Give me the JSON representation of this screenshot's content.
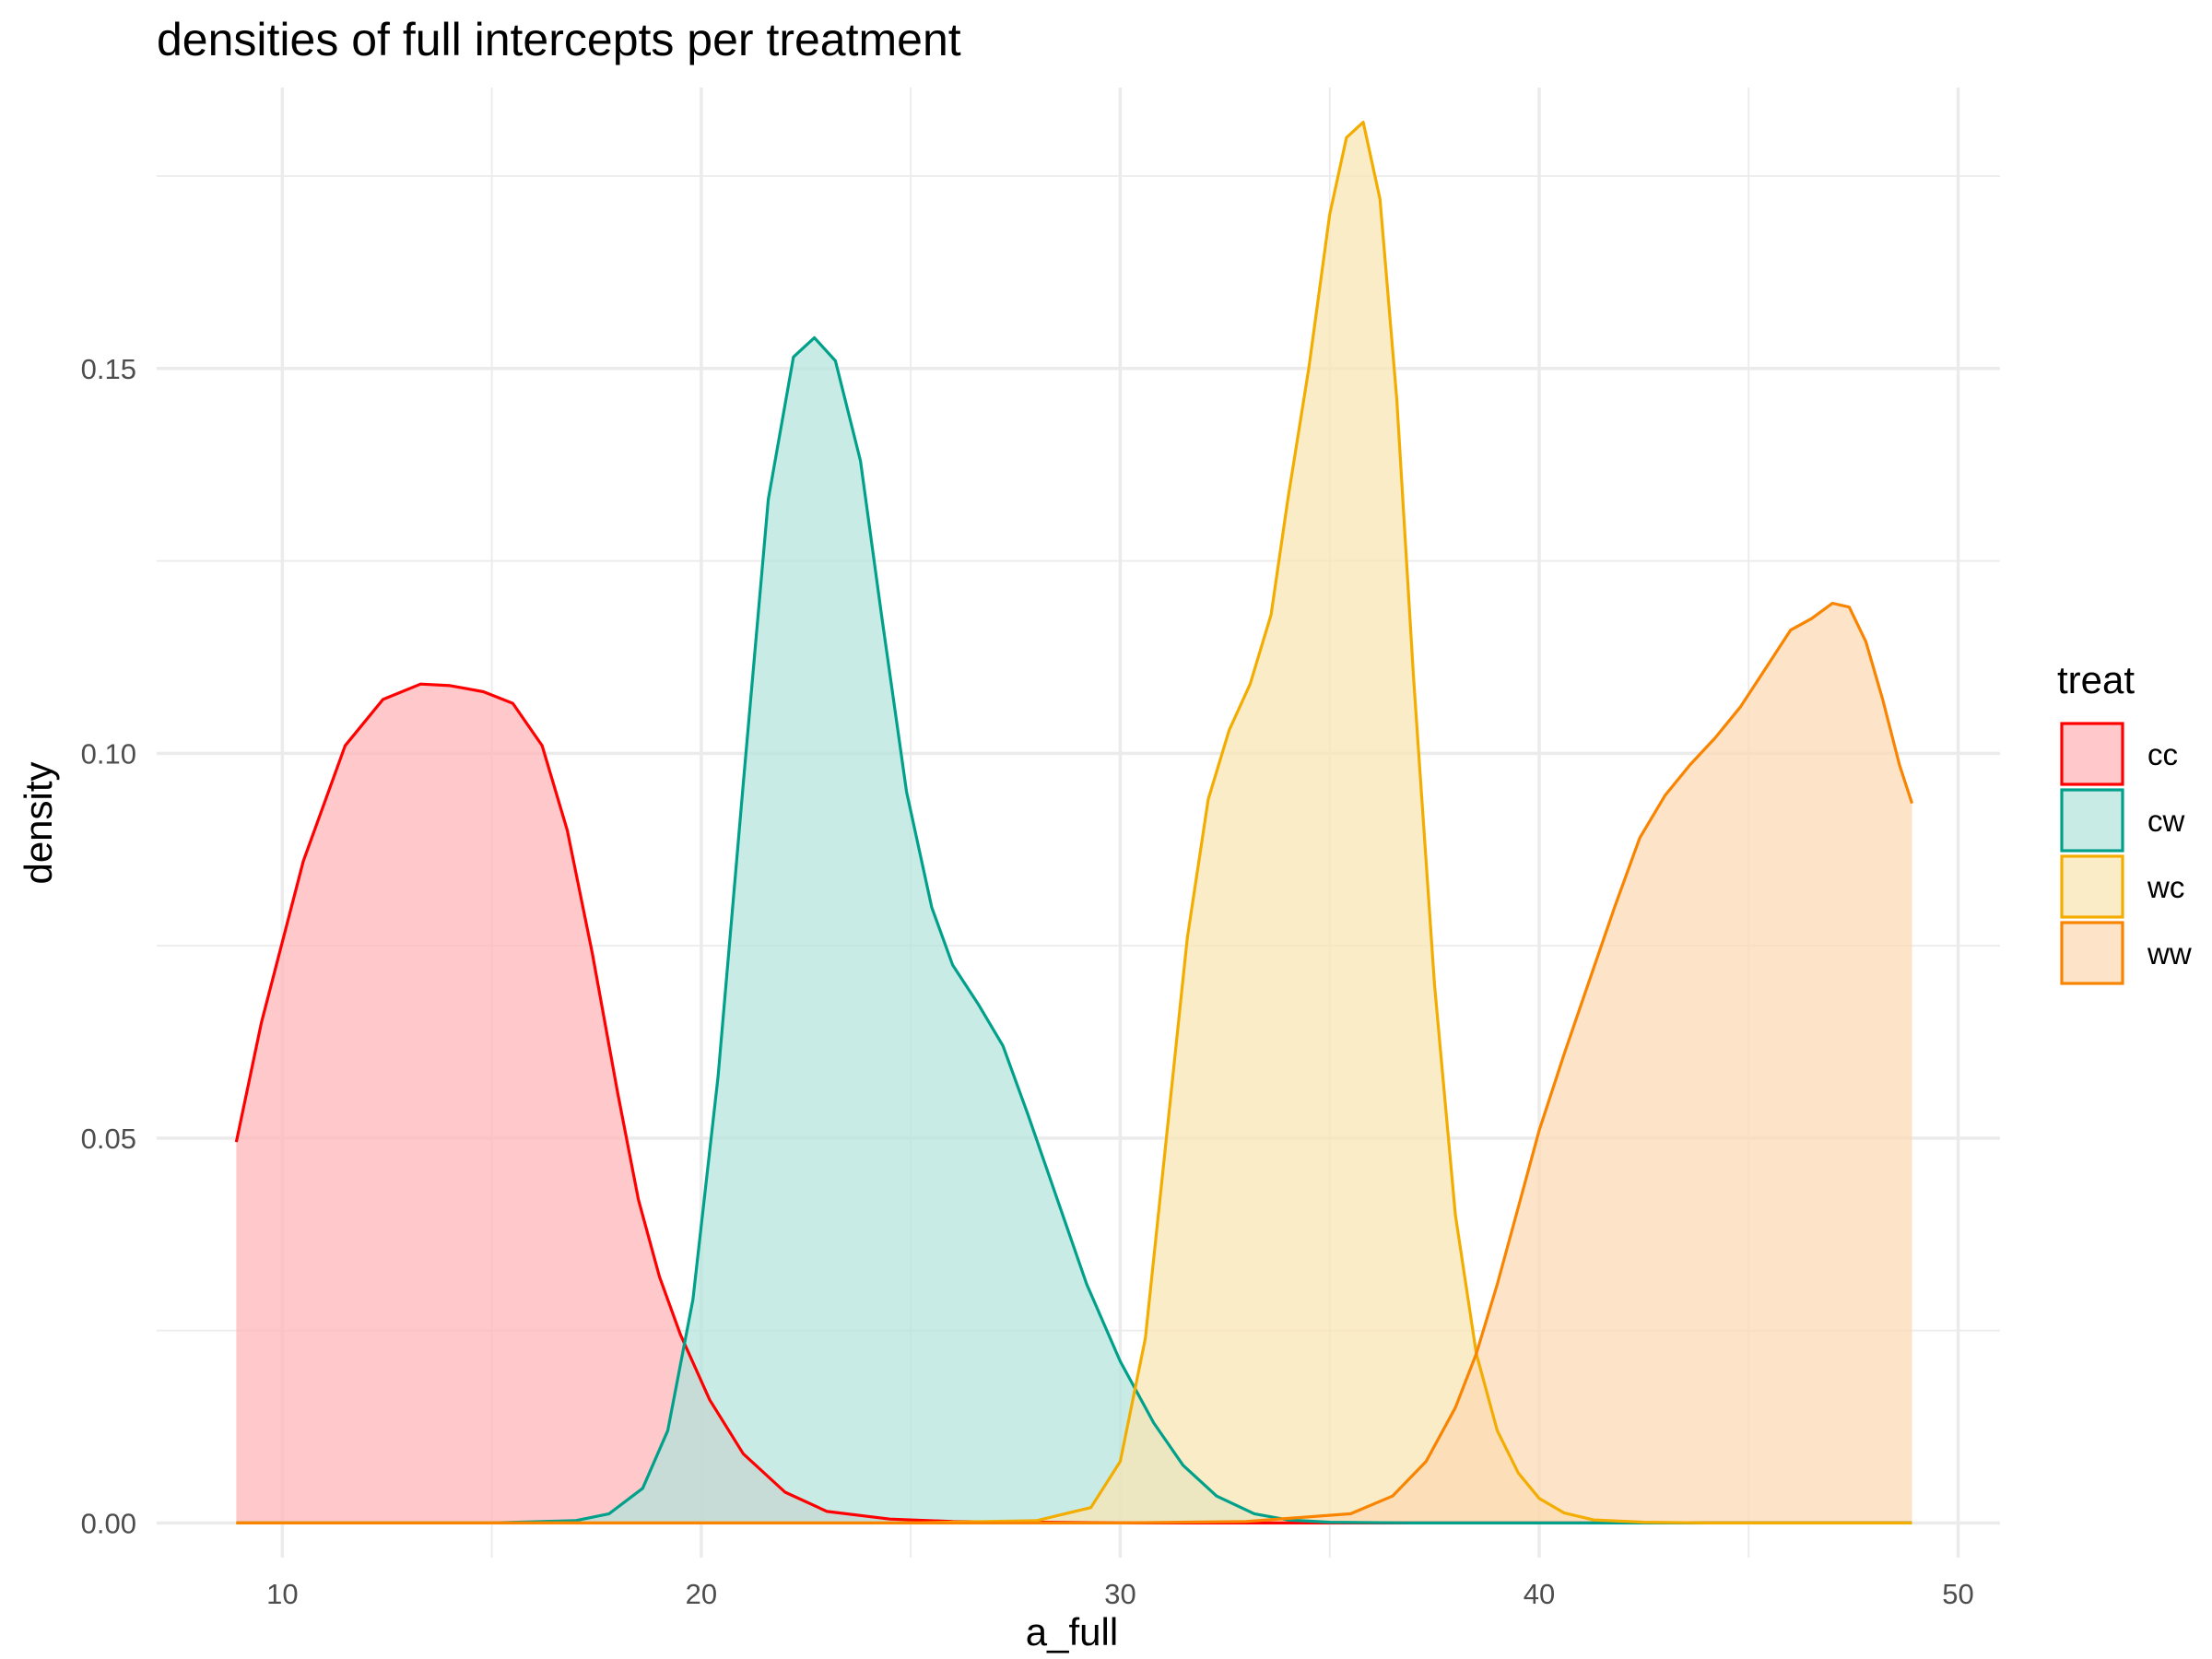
{
  "chart_data": {
    "type": "area",
    "title": "densities of full intercepts per treatment",
    "xlabel": "a_full",
    "ylabel": "density",
    "xlim": [
      7,
      51
    ],
    "ylim": [
      -0.0045,
      0.1865
    ],
    "x_ticks": [
      10,
      20,
      30,
      40,
      50
    ],
    "x_tick_labels": [
      "10",
      "20",
      "30",
      "40",
      "50"
    ],
    "y_ticks": [
      0,
      0.05,
      0.1,
      0.15
    ],
    "y_tick_labels": [
      "0.00",
      "0.05",
      "0.10",
      "0.15"
    ],
    "x_minor": [
      15,
      25,
      35,
      45
    ],
    "y_minor": [
      0.025,
      0.075,
      0.125,
      0.175
    ],
    "grid": true,
    "legend": {
      "title": "treat",
      "position": "right"
    },
    "series": [
      {
        "name": "cc",
        "color": "#ff0000",
        "fill": "#ffb3b5",
        "x": [
          8.9,
          9.5,
          10.5,
          11.5,
          12.4,
          13.3,
          14.0,
          14.8,
          15.5,
          16.2,
          16.8,
          17.4,
          18.0,
          18.5,
          19.0,
          19.5,
          20.2,
          21.0,
          22.0,
          23.0,
          24.5,
          26,
          30,
          40,
          48.9
        ],
        "y": [
          0.0495,
          0.065,
          0.086,
          0.101,
          0.107,
          0.109,
          0.1088,
          0.108,
          0.1065,
          0.101,
          0.09,
          0.074,
          0.056,
          0.042,
          0.032,
          0.0245,
          0.016,
          0.009,
          0.004,
          0.0015,
          0.0005,
          0.0002,
          0,
          0,
          0
        ]
      },
      {
        "name": "cw",
        "color": "#00a08a",
        "fill": "#b3e3dc",
        "x": [
          8.9,
          15,
          17,
          17.8,
          18.6,
          19.2,
          19.8,
          20.4,
          21.0,
          21.6,
          22.2,
          22.7,
          23.2,
          23.8,
          24.3,
          24.9,
          25.5,
          26.0,
          26.6,
          27.2,
          27.8,
          28.5,
          29.2,
          30.0,
          30.8,
          31.5,
          32.3,
          33.2,
          34.0,
          35.0,
          37,
          40,
          48.9
        ],
        "y": [
          0,
          0,
          0.0003,
          0.0012,
          0.0045,
          0.012,
          0.029,
          0.058,
          0.096,
          0.133,
          0.1515,
          0.154,
          0.151,
          0.138,
          0.118,
          0.095,
          0.08,
          0.0725,
          0.0675,
          0.062,
          0.053,
          0.042,
          0.031,
          0.021,
          0.013,
          0.0075,
          0.0035,
          0.0012,
          0.0004,
          0.0001,
          0,
          0,
          0
        ]
      },
      {
        "name": "wc",
        "color": "#f2ad00",
        "fill": "#f9e5b3",
        "x": [
          8.9,
          25,
          28,
          29.3,
          30.0,
          30.6,
          31.1,
          31.6,
          32.1,
          32.6,
          33.1,
          33.6,
          34.0,
          34.5,
          35.0,
          35.4,
          35.8,
          36.2,
          36.6,
          37.0,
          37.5,
          38.0,
          38.5,
          39.0,
          39.5,
          40.0,
          40.6,
          41.3,
          42.5,
          44,
          48.9
        ],
        "y": [
          0,
          0,
          0.0003,
          0.002,
          0.008,
          0.024,
          0.05,
          0.076,
          0.094,
          0.103,
          0.109,
          0.118,
          0.133,
          0.15,
          0.17,
          0.18,
          0.182,
          0.172,
          0.146,
          0.11,
          0.07,
          0.04,
          0.022,
          0.012,
          0.0065,
          0.0032,
          0.0013,
          0.0004,
          0.0001,
          0,
          0
        ]
      },
      {
        "name": "ww",
        "color": "#f98400",
        "fill": "#fcd8b3",
        "x": [
          8.9,
          30,
          33,
          35.5,
          36.5,
          37.3,
          38.0,
          38.5,
          39.0,
          39.5,
          40.0,
          40.6,
          41.2,
          41.8,
          42.4,
          43.0,
          43.6,
          44.2,
          44.8,
          45.4,
          46.0,
          46.5,
          47.0,
          47.4,
          47.8,
          48.2,
          48.6,
          48.9
        ],
        "y": [
          0,
          0,
          0.0002,
          0.0012,
          0.0035,
          0.008,
          0.015,
          0.022,
          0.031,
          0.041,
          0.051,
          0.061,
          0.0705,
          0.08,
          0.089,
          0.0945,
          0.0985,
          0.102,
          0.106,
          0.111,
          0.116,
          0.1175,
          0.1195,
          0.119,
          0.1145,
          0.107,
          0.0985,
          0.0935
        ]
      }
    ]
  }
}
